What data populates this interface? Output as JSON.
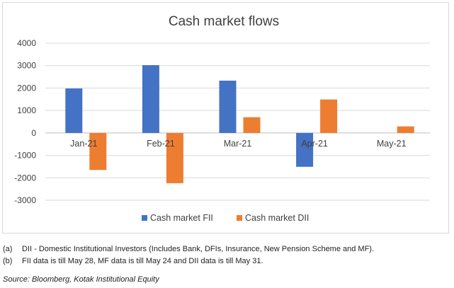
{
  "chart_data": {
    "type": "bar",
    "title": "Cash market flows",
    "categories": [
      "Jan-21",
      "Feb-21",
      "Mar-21",
      "Apr-21",
      "May-21"
    ],
    "series": [
      {
        "name": "Cash market FII",
        "color": "#4472C4",
        "values": [
          1980,
          3020,
          2330,
          -1510,
          null
        ]
      },
      {
        "name": "Cash market DII",
        "color": "#ED7D31",
        "values": [
          -1650,
          -2240,
          700,
          1490,
          290
        ]
      }
    ],
    "yticks": [
      4000,
      3000,
      2000,
      1000,
      0,
      -1000,
      -2000,
      -3000
    ],
    "ylim": [
      -3000,
      4000
    ],
    "grid": true,
    "legend_position": "bottom"
  },
  "notes": [
    {
      "tag": "(a)",
      "text": "DII - Domestic Institutional Investors (Includes Bank, DFIs, Insurance, New Pension Scheme and MF)."
    },
    {
      "tag": "(b)",
      "text": "FII data is till  May 28, MF data is till May 24 and DII data is till May 31."
    }
  ],
  "source": "Source: Bloomberg, Kotak Institutional Equity"
}
